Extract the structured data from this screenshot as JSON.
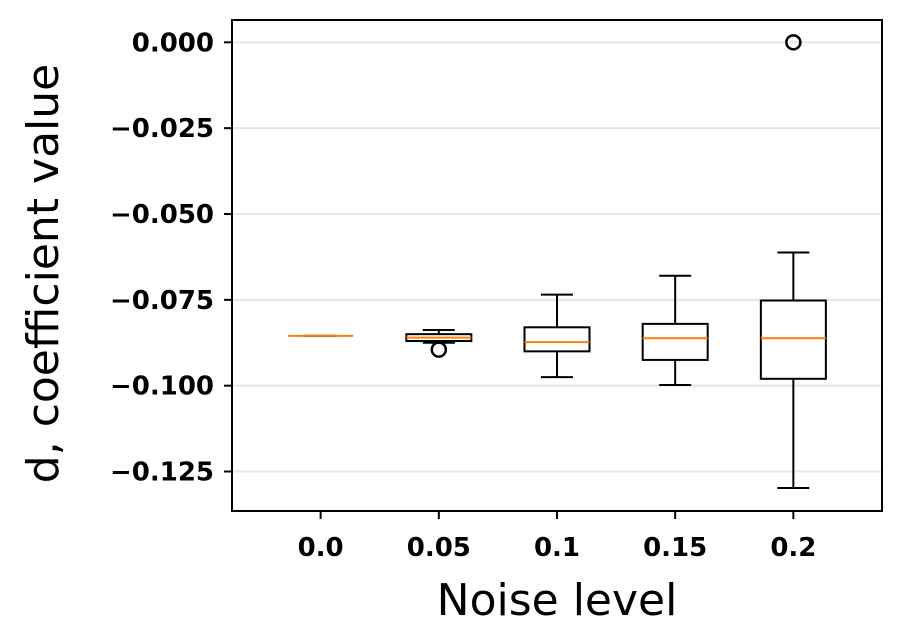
{
  "chart_data": {
    "type": "box",
    "title": "",
    "xlabel": "Noise level",
    "ylabel": "d, coefficient value",
    "categories": [
      "0.0",
      "0.05",
      "0.1",
      "0.15",
      "0.2"
    ],
    "ylim": [
      -0.1365,
      0.0065
    ],
    "yticks": [
      0.0,
      -0.025,
      -0.05,
      -0.075,
      -0.1,
      -0.125
    ],
    "ytick_labels": [
      "0.000",
      "−0.025",
      "−0.050",
      "−0.075",
      "−0.100",
      "−0.125"
    ],
    "grid": "horizontal",
    "legend": "none",
    "boxes": [
      {
        "category": "0.0",
        "whisker_low": -0.0855,
        "q1": -0.0855,
        "median": -0.0855,
        "q3": -0.0855,
        "whisker_high": -0.0855,
        "outliers": []
      },
      {
        "category": "0.05",
        "whisker_low": -0.0875,
        "q1": -0.087,
        "median": -0.086,
        "q3": -0.085,
        "whisker_high": -0.0838,
        "outliers": [
          -0.0895
        ]
      },
      {
        "category": "0.1",
        "whisker_low": -0.0975,
        "q1": -0.09,
        "median": -0.0873,
        "q3": -0.083,
        "whisker_high": -0.0735,
        "outliers": []
      },
      {
        "category": "0.15",
        "whisker_low": -0.0998,
        "q1": -0.0925,
        "median": -0.0862,
        "q3": -0.082,
        "whisker_high": -0.068,
        "outliers": []
      },
      {
        "category": "0.2",
        "whisker_low": -0.1298,
        "q1": -0.098,
        "median": -0.0862,
        "q3": -0.0752,
        "whisker_high": -0.0612,
        "outliers": [
          0.0
        ]
      }
    ],
    "colors": {
      "box": "#000000",
      "median": "#ff7f0e",
      "grid": "#e6e6e6"
    }
  }
}
